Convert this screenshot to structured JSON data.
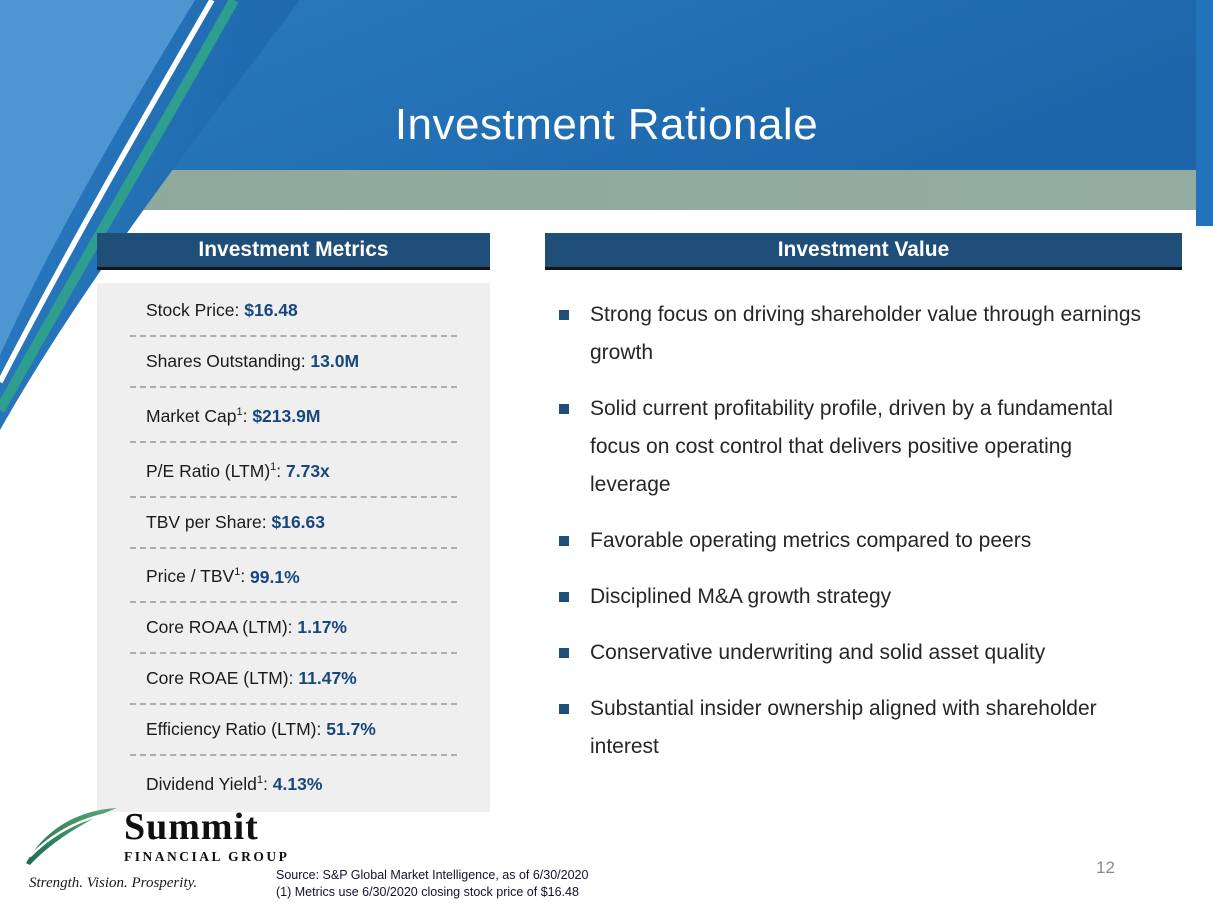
{
  "slide": {
    "title": "Investment Rationale",
    "page_number": "12"
  },
  "metrics": {
    "header": "Investment Metrics",
    "separator": ": ",
    "rows": [
      {
        "label": "Stock Price",
        "sup": "",
        "value": "$16.48"
      },
      {
        "label": "Shares Outstanding",
        "sup": "",
        "value": "13.0M"
      },
      {
        "label": "Market Cap",
        "sup": "1",
        "value": "$213.9M"
      },
      {
        "label": "P/E Ratio (LTM)",
        "sup": "1",
        "value": "7.73x"
      },
      {
        "label": "TBV per Share",
        "sup": "",
        "value": "$16.63"
      },
      {
        "label": "Price / TBV",
        "sup": "1",
        "value": "99.1%"
      },
      {
        "label": "Core ROAA (LTM)",
        "sup": "",
        "value": "1.17%"
      },
      {
        "label": "Core ROAE (LTM)",
        "sup": "",
        "value": "11.47%"
      },
      {
        "label": "Efficiency Ratio (LTM)",
        "sup": "",
        "value": "51.7%"
      },
      {
        "label": "Dividend Yield",
        "sup": "1",
        "value": "4.13%"
      }
    ]
  },
  "value_panel": {
    "header": "Investment Value",
    "bullets": [
      "Strong focus on driving shareholder value through earnings growth",
      "Solid current profitability profile, driven by a fundamental focus on cost control that delivers positive operating leverage",
      "Favorable operating metrics compared to peers",
      "Disciplined M&A growth strategy",
      "Conservative underwriting and solid asset quality",
      "Substantial insider ownership aligned with shareholder interest"
    ]
  },
  "footer": {
    "logo": {
      "name": "Summit",
      "subtitle": "FINANCIAL GROUP",
      "tagline": "Strength. Vision. Prosperity."
    },
    "source_line1": "Source: S&P Global Market Intelligence, as of 6/30/2020",
    "source_line2": "(1) Metrics use 6/30/2020 closing stock price of $16.48"
  },
  "colors": {
    "header_blue": "#2373BA",
    "corner_light_blue": "#4E96D2",
    "navy": "#1F4E79",
    "sage_green_band": "#8EA99B",
    "teal_accent": "#2E9E8F",
    "metrics_bg": "#EFEFEF",
    "value_text_blue": "#17477C",
    "page_number_gray": "#8A8A8A"
  }
}
